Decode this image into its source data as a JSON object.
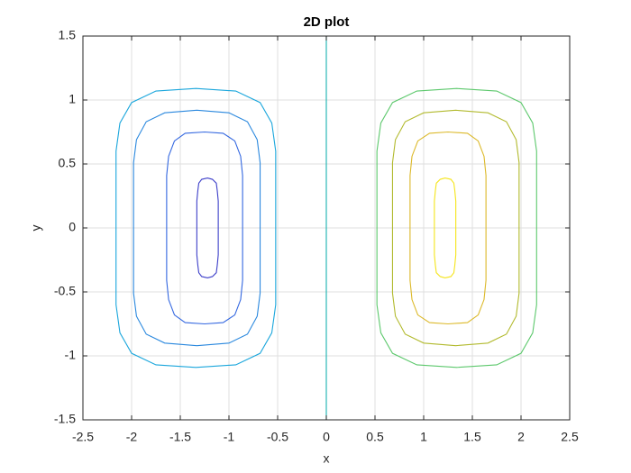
{
  "chart_data": {
    "type": "contour",
    "title": "2D plot",
    "x_label": "x",
    "y_label": "y",
    "xlim": [
      -2.5,
      2.5
    ],
    "xticks": [
      -2.5,
      -2,
      -1.5,
      -1,
      -0.5,
      0,
      0.5,
      1,
      1.5,
      2,
      2.5
    ],
    "ylim": [
      -1.5,
      1.5
    ],
    "yticks": [
      -1.5,
      -1,
      -0.5,
      0,
      0.5,
      1,
      1.5
    ],
    "grid": true,
    "series": [
      {
        "color": "#3d3fc9",
        "x": [
          -1.11,
          -1.11,
          -1.12,
          -1.13,
          -1.17,
          -1.22,
          -1.28,
          -1.31,
          -1.32,
          -1.33,
          -1.33,
          -1.33,
          -1.32,
          -1.31,
          -1.28,
          -1.22,
          -1.17,
          -1.13,
          -1.12,
          -1.11,
          -1.11
        ],
        "y": [
          0,
          0.21,
          0.29,
          0.35,
          0.38,
          0.39,
          0.38,
          0.35,
          0.29,
          0.21,
          0,
          -0.21,
          -0.29,
          -0.35,
          -0.38,
          -0.39,
          -0.38,
          -0.35,
          -0.29,
          -0.21,
          0
        ]
      },
      {
        "color": "#3367e0",
        "x": [
          -0.86,
          -0.86,
          -0.88,
          -0.94,
          -1.06,
          -1.25,
          -1.45,
          -1.56,
          -1.62,
          -1.64,
          -1.64,
          -1.64,
          -1.62,
          -1.56,
          -1.45,
          -1.25,
          -1.06,
          -0.94,
          -0.88,
          -0.86,
          -0.86
        ],
        "y": [
          0,
          0.41,
          0.56,
          0.68,
          0.74,
          0.75,
          0.74,
          0.68,
          0.56,
          0.41,
          0,
          -0.41,
          -0.56,
          -0.68,
          -0.74,
          -0.75,
          -0.74,
          -0.68,
          -0.56,
          -0.41,
          0
        ]
      },
      {
        "color": "#2a88de",
        "x": [
          -0.68,
          -0.68,
          -0.71,
          -0.81,
          -1.0,
          -1.33,
          -1.66,
          -1.85,
          -1.95,
          -1.98,
          -1.98,
          -1.98,
          -1.95,
          -1.85,
          -1.66,
          -1.33,
          -1.0,
          -0.81,
          -0.71,
          -0.68,
          -0.68
        ],
        "y": [
          0,
          0.51,
          0.69,
          0.83,
          0.9,
          0.92,
          0.9,
          0.83,
          0.69,
          0.51,
          0,
          -0.51,
          -0.69,
          -0.83,
          -0.9,
          -0.92,
          -0.9,
          -0.83,
          -0.69,
          -0.51,
          0
        ]
      },
      {
        "color": "#1aa6dc",
        "x": [
          -0.52,
          -0.52,
          -0.56,
          -0.68,
          -0.93,
          -1.34,
          -1.75,
          -2.0,
          -2.12,
          -2.16,
          -2.16,
          -2.16,
          -2.12,
          -2.0,
          -1.75,
          -1.34,
          -0.93,
          -0.68,
          -0.56,
          -0.52,
          -0.52
        ],
        "y": [
          0,
          0.6,
          0.82,
          0.98,
          1.07,
          1.09,
          1.07,
          0.98,
          0.82,
          0.6,
          0,
          -0.6,
          -0.82,
          -0.98,
          -1.07,
          -1.09,
          -1.07,
          -0.98,
          -0.82,
          -0.6,
          0
        ]
      },
      {
        "color": "#17b2b0",
        "x": [
          0,
          0
        ],
        "y": [
          -1.5,
          1.5
        ]
      },
      {
        "color": "#5cc86c",
        "x": [
          0.52,
          0.52,
          0.56,
          0.68,
          0.93,
          1.34,
          1.75,
          2.0,
          2.12,
          2.16,
          2.16,
          2.16,
          2.12,
          2.0,
          1.75,
          1.34,
          0.93,
          0.68,
          0.56,
          0.52,
          0.52
        ],
        "y": [
          0,
          0.6,
          0.82,
          0.98,
          1.07,
          1.09,
          1.07,
          0.98,
          0.82,
          0.6,
          0,
          -0.6,
          -0.82,
          -0.98,
          -1.07,
          -1.09,
          -1.07,
          -0.98,
          -0.82,
          -0.6,
          0
        ]
      },
      {
        "color": "#b2ba2e",
        "x": [
          0.68,
          0.68,
          0.71,
          0.81,
          1.0,
          1.33,
          1.66,
          1.85,
          1.95,
          1.98,
          1.98,
          1.98,
          1.95,
          1.85,
          1.66,
          1.33,
          1.0,
          0.81,
          0.71,
          0.68,
          0.68
        ],
        "y": [
          0,
          0.51,
          0.69,
          0.83,
          0.9,
          0.92,
          0.9,
          0.83,
          0.69,
          0.51,
          0,
          -0.51,
          -0.69,
          -0.83,
          -0.9,
          -0.92,
          -0.9,
          -0.83,
          -0.69,
          -0.51,
          0
        ]
      },
      {
        "color": "#dcb92a",
        "x": [
          0.86,
          0.86,
          0.88,
          0.94,
          1.06,
          1.25,
          1.45,
          1.56,
          1.62,
          1.64,
          1.64,
          1.64,
          1.62,
          1.56,
          1.45,
          1.25,
          1.06,
          0.94,
          0.88,
          0.86,
          0.86
        ],
        "y": [
          0,
          0.41,
          0.56,
          0.68,
          0.74,
          0.75,
          0.74,
          0.68,
          0.56,
          0.41,
          0,
          -0.41,
          -0.56,
          -0.68,
          -0.74,
          -0.75,
          -0.74,
          -0.68,
          -0.56,
          -0.41,
          0
        ]
      },
      {
        "color": "#f5e51b",
        "x": [
          1.11,
          1.11,
          1.12,
          1.13,
          1.17,
          1.22,
          1.28,
          1.31,
          1.32,
          1.33,
          1.33,
          1.33,
          1.32,
          1.31,
          1.28,
          1.22,
          1.17,
          1.13,
          1.12,
          1.11,
          1.11
        ],
        "y": [
          0,
          0.21,
          0.29,
          0.35,
          0.38,
          0.39,
          0.38,
          0.35,
          0.29,
          0.21,
          0,
          -0.21,
          -0.29,
          -0.35,
          -0.38,
          -0.39,
          -0.38,
          -0.35,
          -0.29,
          -0.21,
          0
        ]
      }
    ]
  }
}
